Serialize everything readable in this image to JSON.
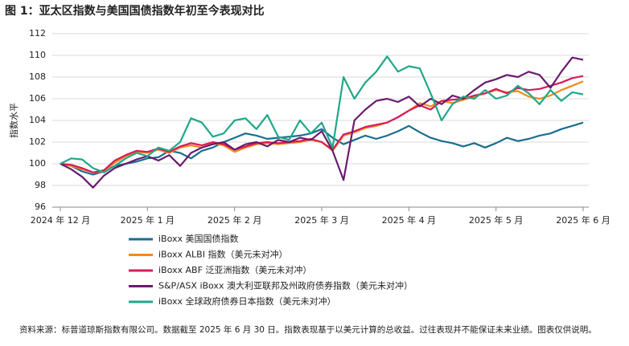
{
  "chart_data": {
    "type": "line",
    "title": "图 1：亚太区指数与美国国债指数年初至今表现对比",
    "y_label": "指数水平",
    "source": "资料来源：标普道琼斯指数有限公司。数据截至 2025 年 6 月 30 日。指数表现基于以美元计算的总收益。过往表现并不能保证未来业绩。图表仅供说明。",
    "categories": [
      "2024 年 12 月",
      null,
      null,
      null,
      null,
      null,
      null,
      null,
      "2025 年 1 月",
      null,
      null,
      null,
      null,
      null,
      null,
      null,
      "2025 年 2 月",
      null,
      null,
      null,
      null,
      null,
      null,
      null,
      "2025 年 3 月",
      null,
      null,
      null,
      null,
      null,
      null,
      null,
      "2025 年 4 月",
      null,
      null,
      null,
      null,
      null,
      null,
      null,
      "2025 年 5 月",
      null,
      null,
      null,
      null,
      null,
      null,
      null,
      "2025 年 6 月"
    ],
    "ylim": [
      96,
      112
    ],
    "yticks": [
      96,
      98,
      100,
      102,
      104,
      106,
      108,
      110,
      112
    ],
    "grid": true,
    "series": [
      {
        "name": "iBoxx 美国国债指数",
        "color": "#1a6e8e",
        "values": [
          100,
          99.8,
          99.3,
          99.0,
          99.3,
          99.8,
          100.0,
          100.2,
          100.5,
          100.6,
          101.2,
          101.0,
          100.5,
          101.2,
          101.5,
          102.0,
          102.4,
          102.8,
          102.6,
          102.3,
          102.4,
          102.5,
          102.6,
          102.8,
          103.2,
          102.4,
          101.8,
          102.2,
          102.6,
          102.3,
          102.6,
          103.0,
          103.5,
          102.9,
          102.4,
          102.1,
          101.9,
          101.6,
          101.9,
          101.5,
          101.9,
          102.4,
          102.1,
          102.3,
          102.6,
          102.8,
          103.2,
          103.5,
          103.8
        ]
      },
      {
        "name": "iBoxx ALBI 指数（美元未对冲）",
        "color": "#f08a1c",
        "values": [
          100,
          99.8,
          99.5,
          99.2,
          99.3,
          100.1,
          100.7,
          101.1,
          101.0,
          101.3,
          101.0,
          101.5,
          101.7,
          101.5,
          101.9,
          101.7,
          101.1,
          101.5,
          101.8,
          101.9,
          101.8,
          101.9,
          102.0,
          102.2,
          102.0,
          101.2,
          102.6,
          102.9,
          103.3,
          103.5,
          103.8,
          104.3,
          104.9,
          105.6,
          105.3,
          105.8,
          105.6,
          105.9,
          106.2,
          106.5,
          106.8,
          106.6,
          106.7,
          106.2,
          106.0,
          106.3,
          106.8,
          107.2,
          107.6
        ]
      },
      {
        "name": "iBoxx ABF 泛亚洲指数（美元未对冲）",
        "color": "#d81b5a",
        "values": [
          100,
          99.9,
          99.6,
          99.2,
          99.4,
          100.3,
          100.8,
          101.2,
          101.1,
          101.4,
          101.1,
          101.6,
          101.9,
          101.7,
          102.0,
          101.8,
          101.3,
          101.6,
          101.9,
          102.0,
          101.9,
          102.0,
          102.1,
          102.3,
          102.0,
          101.3,
          102.7,
          103.0,
          103.4,
          103.6,
          103.8,
          104.3,
          104.9,
          105.4,
          105.0,
          105.8,
          105.9,
          106.0,
          106.3,
          106.5,
          106.9,
          106.5,
          107.0,
          106.8,
          106.9,
          107.2,
          107.5,
          107.9,
          108.1
        ]
      },
      {
        "name": "S&P/ASX iBoxx 澳大利亚联邦及州政府债券指数（美元未对冲）",
        "color": "#6a1b6e",
        "values": [
          100,
          99.5,
          98.8,
          97.8,
          98.9,
          99.6,
          100.0,
          100.4,
          100.7,
          100.3,
          100.8,
          99.8,
          101.0,
          101.5,
          101.8,
          102.0,
          101.3,
          101.8,
          102.0,
          101.6,
          102.2,
          102.0,
          102.4,
          102.2,
          103.0,
          101.2,
          98.5,
          104.0,
          105.0,
          105.8,
          106.0,
          105.7,
          106.2,
          105.3,
          106.0,
          105.5,
          106.3,
          106.0,
          106.8,
          107.5,
          107.8,
          108.2,
          108.0,
          108.5,
          108.2,
          107.0,
          108.5,
          109.8,
          109.6
        ]
      },
      {
        "name": "iBoxx 全球政府债券日本指数（美元未对冲）",
        "color": "#1fa889",
        "values": [
          100,
          100.5,
          100.4,
          99.6,
          99.2,
          99.8,
          100.5,
          101.0,
          100.7,
          101.5,
          101.2,
          102.0,
          104.2,
          103.8,
          102.5,
          102.8,
          104.0,
          104.2,
          103.2,
          104.5,
          102.5,
          102.2,
          104.0,
          102.8,
          103.8,
          101.5,
          108.0,
          106.0,
          107.5,
          108.5,
          109.9,
          108.5,
          109.0,
          108.8,
          106.5,
          104.0,
          105.5,
          106.2,
          106.0,
          106.8,
          106.0,
          106.3,
          107.2,
          106.5,
          105.5,
          106.8,
          105.8,
          106.6,
          106.4
        ]
      }
    ]
  }
}
